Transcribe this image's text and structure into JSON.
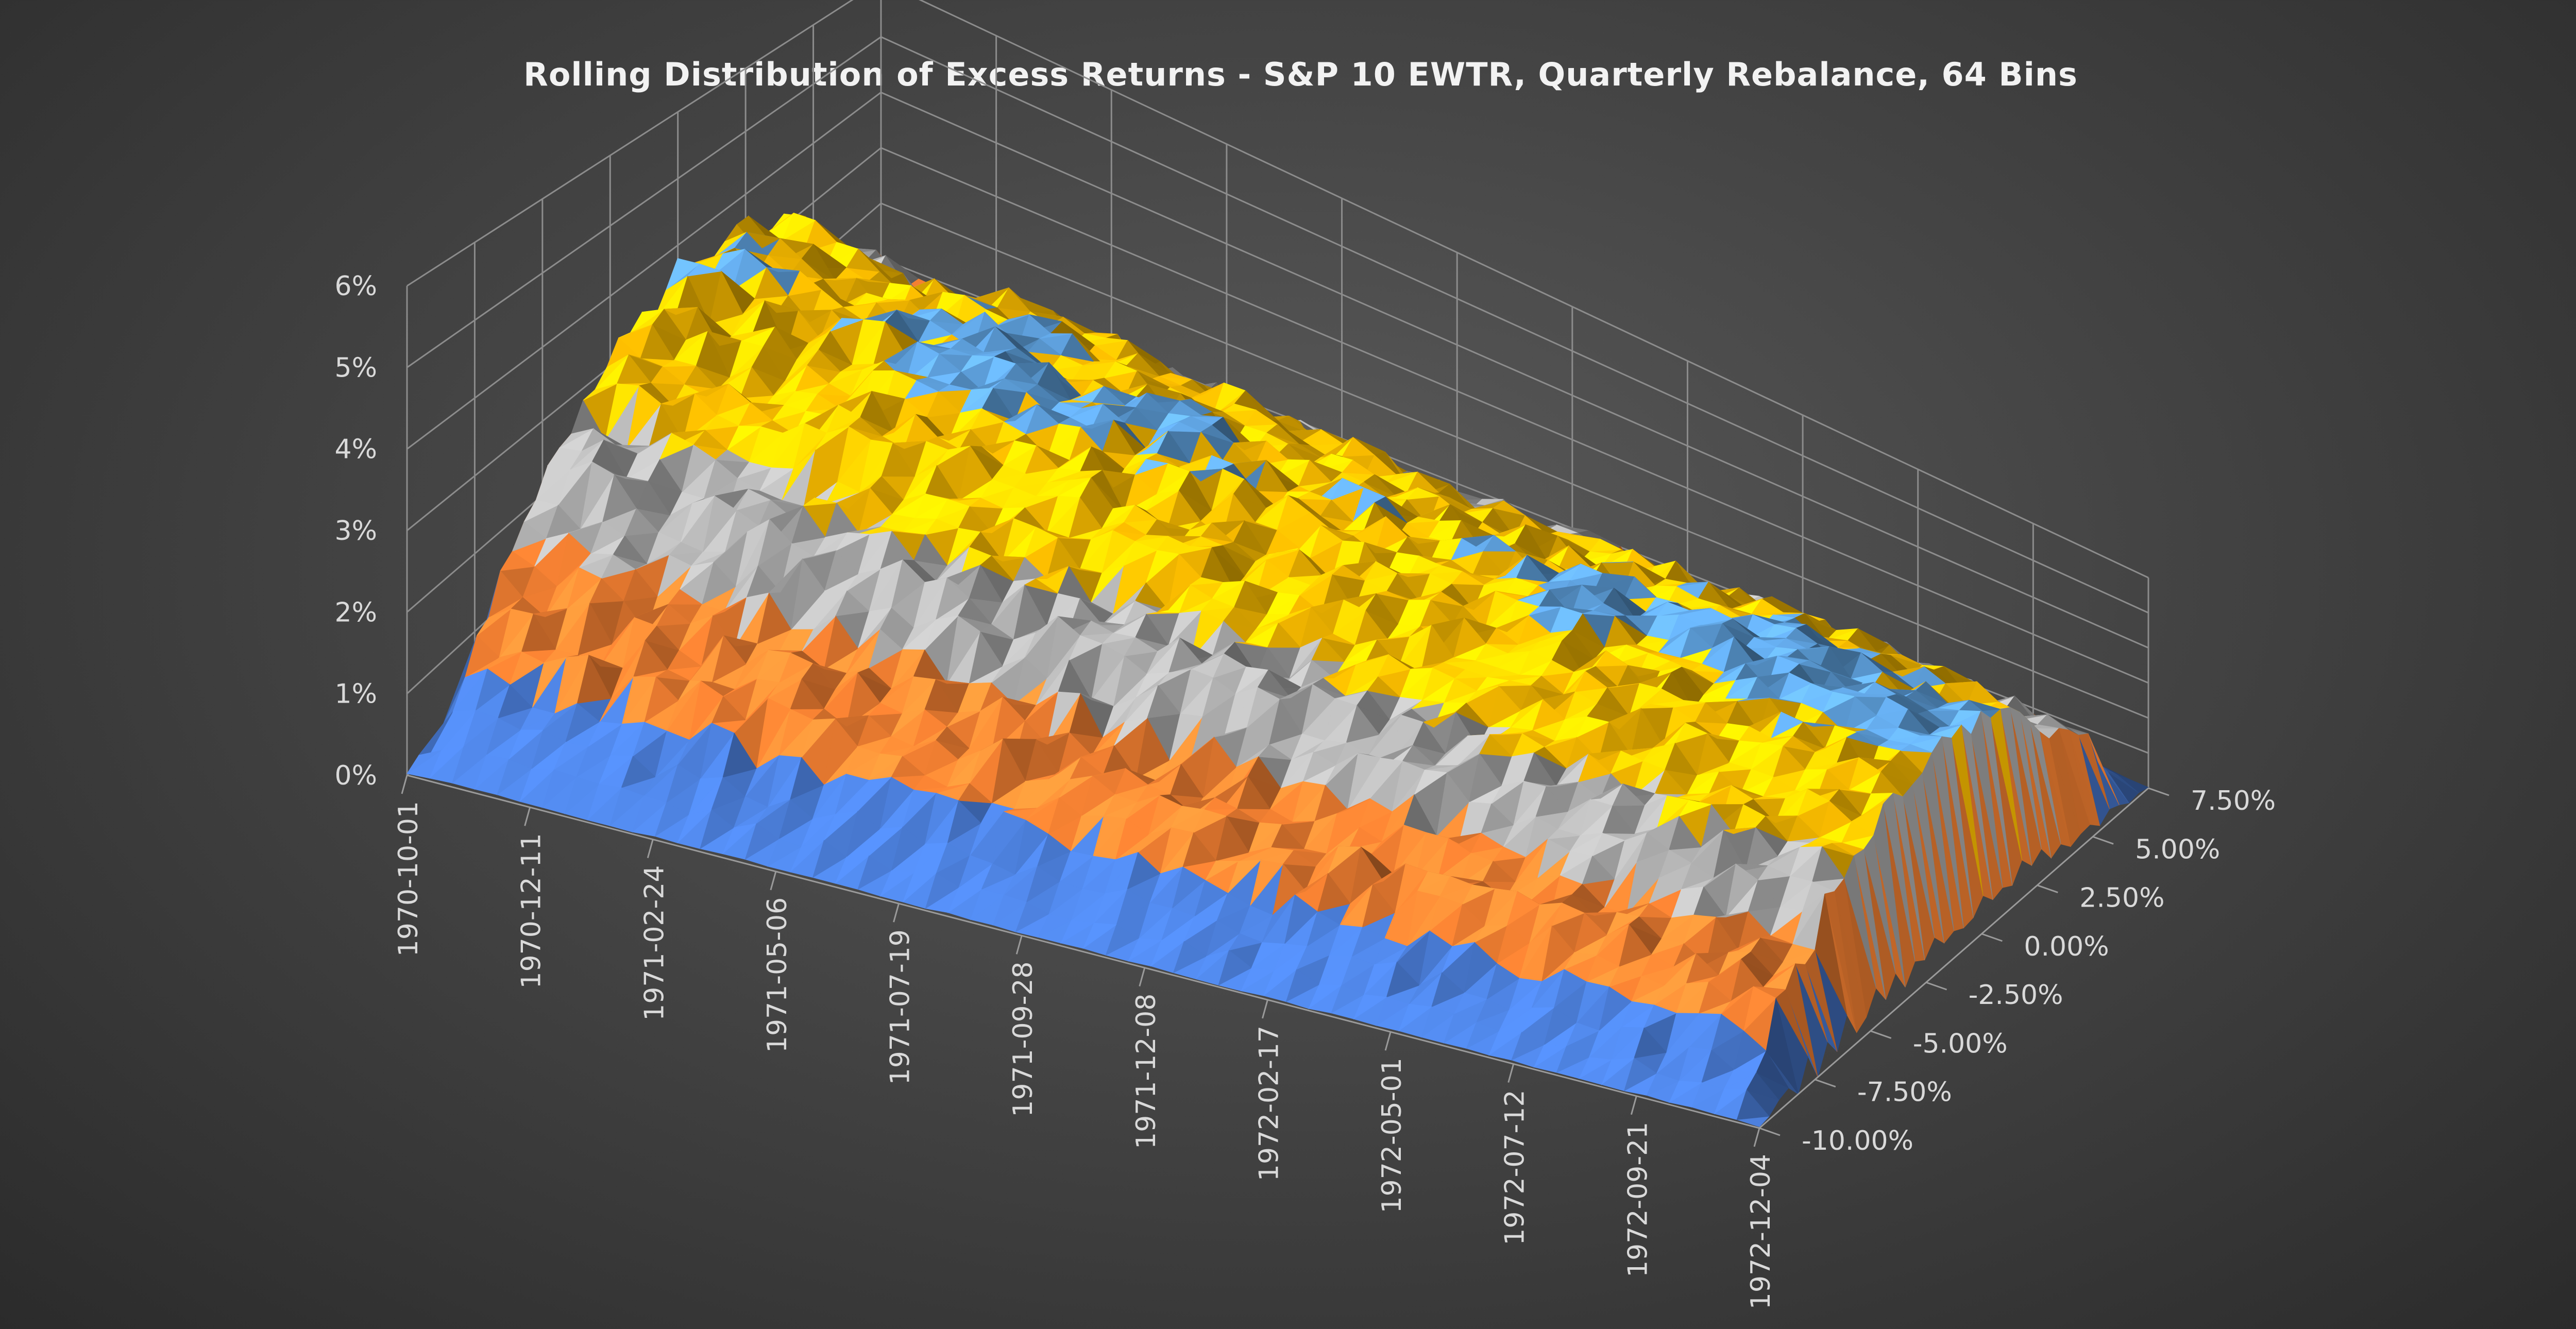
{
  "chart_data": {
    "type": "surface",
    "title": "Rolling Distribution of Excess Returns - S&P 10 EWTR, Quarterly Rebalance, 64 Bins",
    "z_axis": {
      "range": [
        0,
        6
      ],
      "tick_labels": [
        "0%",
        "1%",
        "2%",
        "3%",
        "4%",
        "5%",
        "6%"
      ],
      "unit": "%"
    },
    "x_axis": {
      "tick_labels": [
        "1970-10-01",
        "1970-12-11",
        "1971-02-24",
        "1971-05-06",
        "1971-07-19",
        "1971-09-28",
        "1971-12-08",
        "1972-02-17",
        "1972-05-01",
        "1972-07-12",
        "1972-09-21",
        "1972-12-04"
      ]
    },
    "y_axis": {
      "range": [
        -10,
        7.5
      ],
      "tick_labels": [
        "-10.00%",
        "-7.50%",
        "-5.00%",
        "-2.50%",
        "0.00%",
        "2.50%",
        "5.00%",
        "7.50%"
      ]
    },
    "color_bands": [
      {
        "range": "0%-1%",
        "color": "#4472c4"
      },
      {
        "range": "1%-2%",
        "color": "#ed7d31"
      },
      {
        "range": "2%-3%",
        "color": "#a5a5a5"
      },
      {
        "range": "3%-4%",
        "color": "#ffc000"
      },
      {
        "range": "4%-5%",
        "color": "#5b9bd5"
      }
    ],
    "surface_profile": {
      "description_units": "height in % at each return bin (approximate, typical across dates)",
      "bins_pct": [
        -10,
        -7.5,
        -5,
        -2.5,
        0,
        2.5,
        5,
        7.5
      ],
      "typical_height_pct": [
        0.2,
        1.6,
        2.9,
        3.7,
        4.1,
        3.8,
        2.4,
        0.2
      ]
    },
    "grid": true,
    "legend": "none"
  },
  "colors": {
    "background": "#454545",
    "grid": "#8c8c8c",
    "text": "#d9d9d9"
  }
}
